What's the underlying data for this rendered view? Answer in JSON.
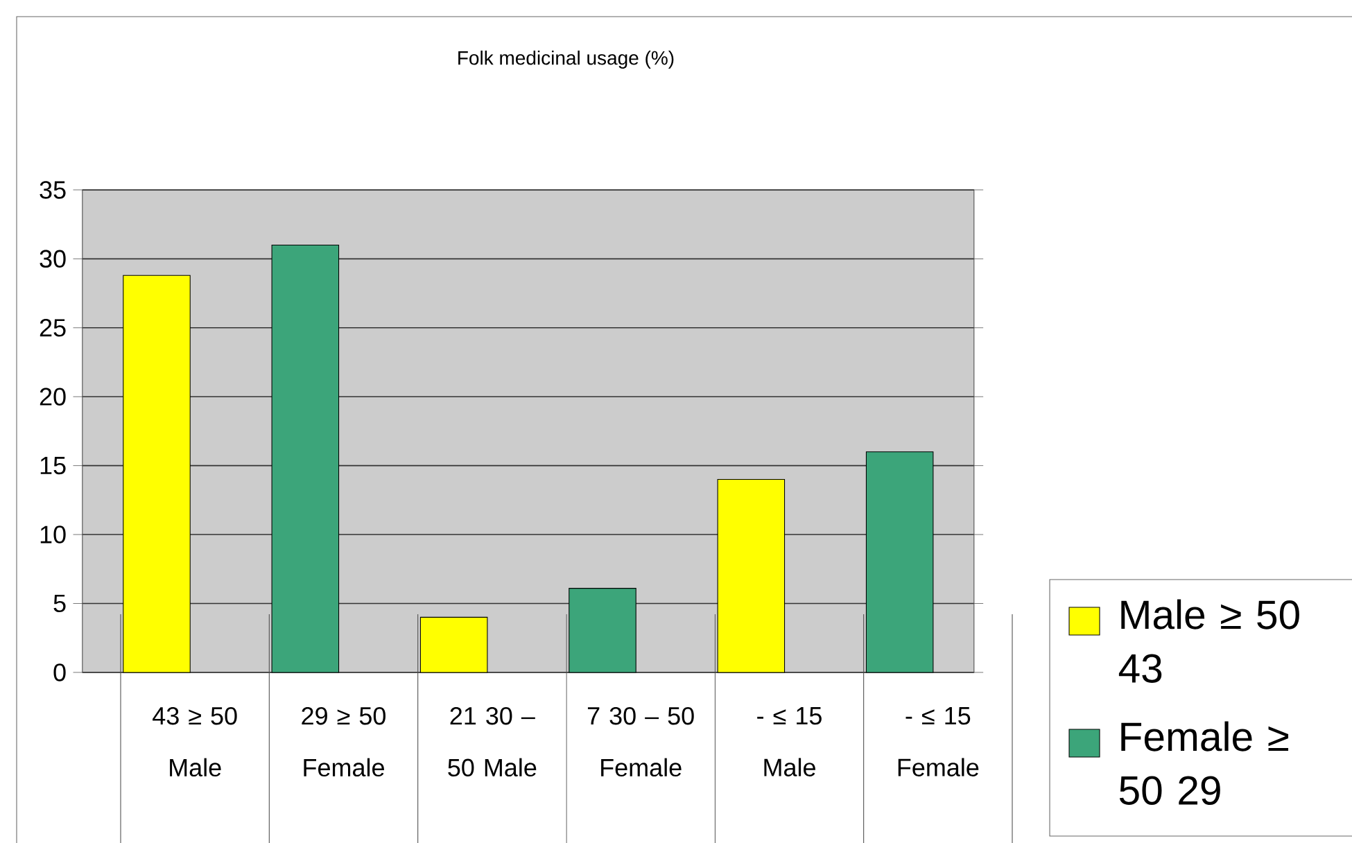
{
  "chart_data": {
    "type": "bar",
    "title": "Folk medicinal usage (%)",
    "categories": [
      "43 ≥ 50 Male",
      "29 ≥ 50 Female",
      "21 30 – 50 Male",
      "7 30 – 50 Female",
      "- ≤ 15 Male",
      "- ≤ 15 Female"
    ],
    "series": [
      {
        "name": "Male ≥ 50 43",
        "color": "#ffff00",
        "values": [
          28.8,
          null,
          4,
          null,
          14,
          null
        ]
      },
      {
        "name": "Female ≥ 50 29",
        "color": "#3ca57a",
        "values": [
          null,
          31,
          null,
          6.1,
          null,
          16
        ]
      }
    ],
    "ylim": [
      0,
      35
    ],
    "yticks": [
      0,
      5,
      10,
      15,
      20,
      25,
      30,
      35
    ],
    "grid": "y",
    "legend": "bottom right"
  }
}
